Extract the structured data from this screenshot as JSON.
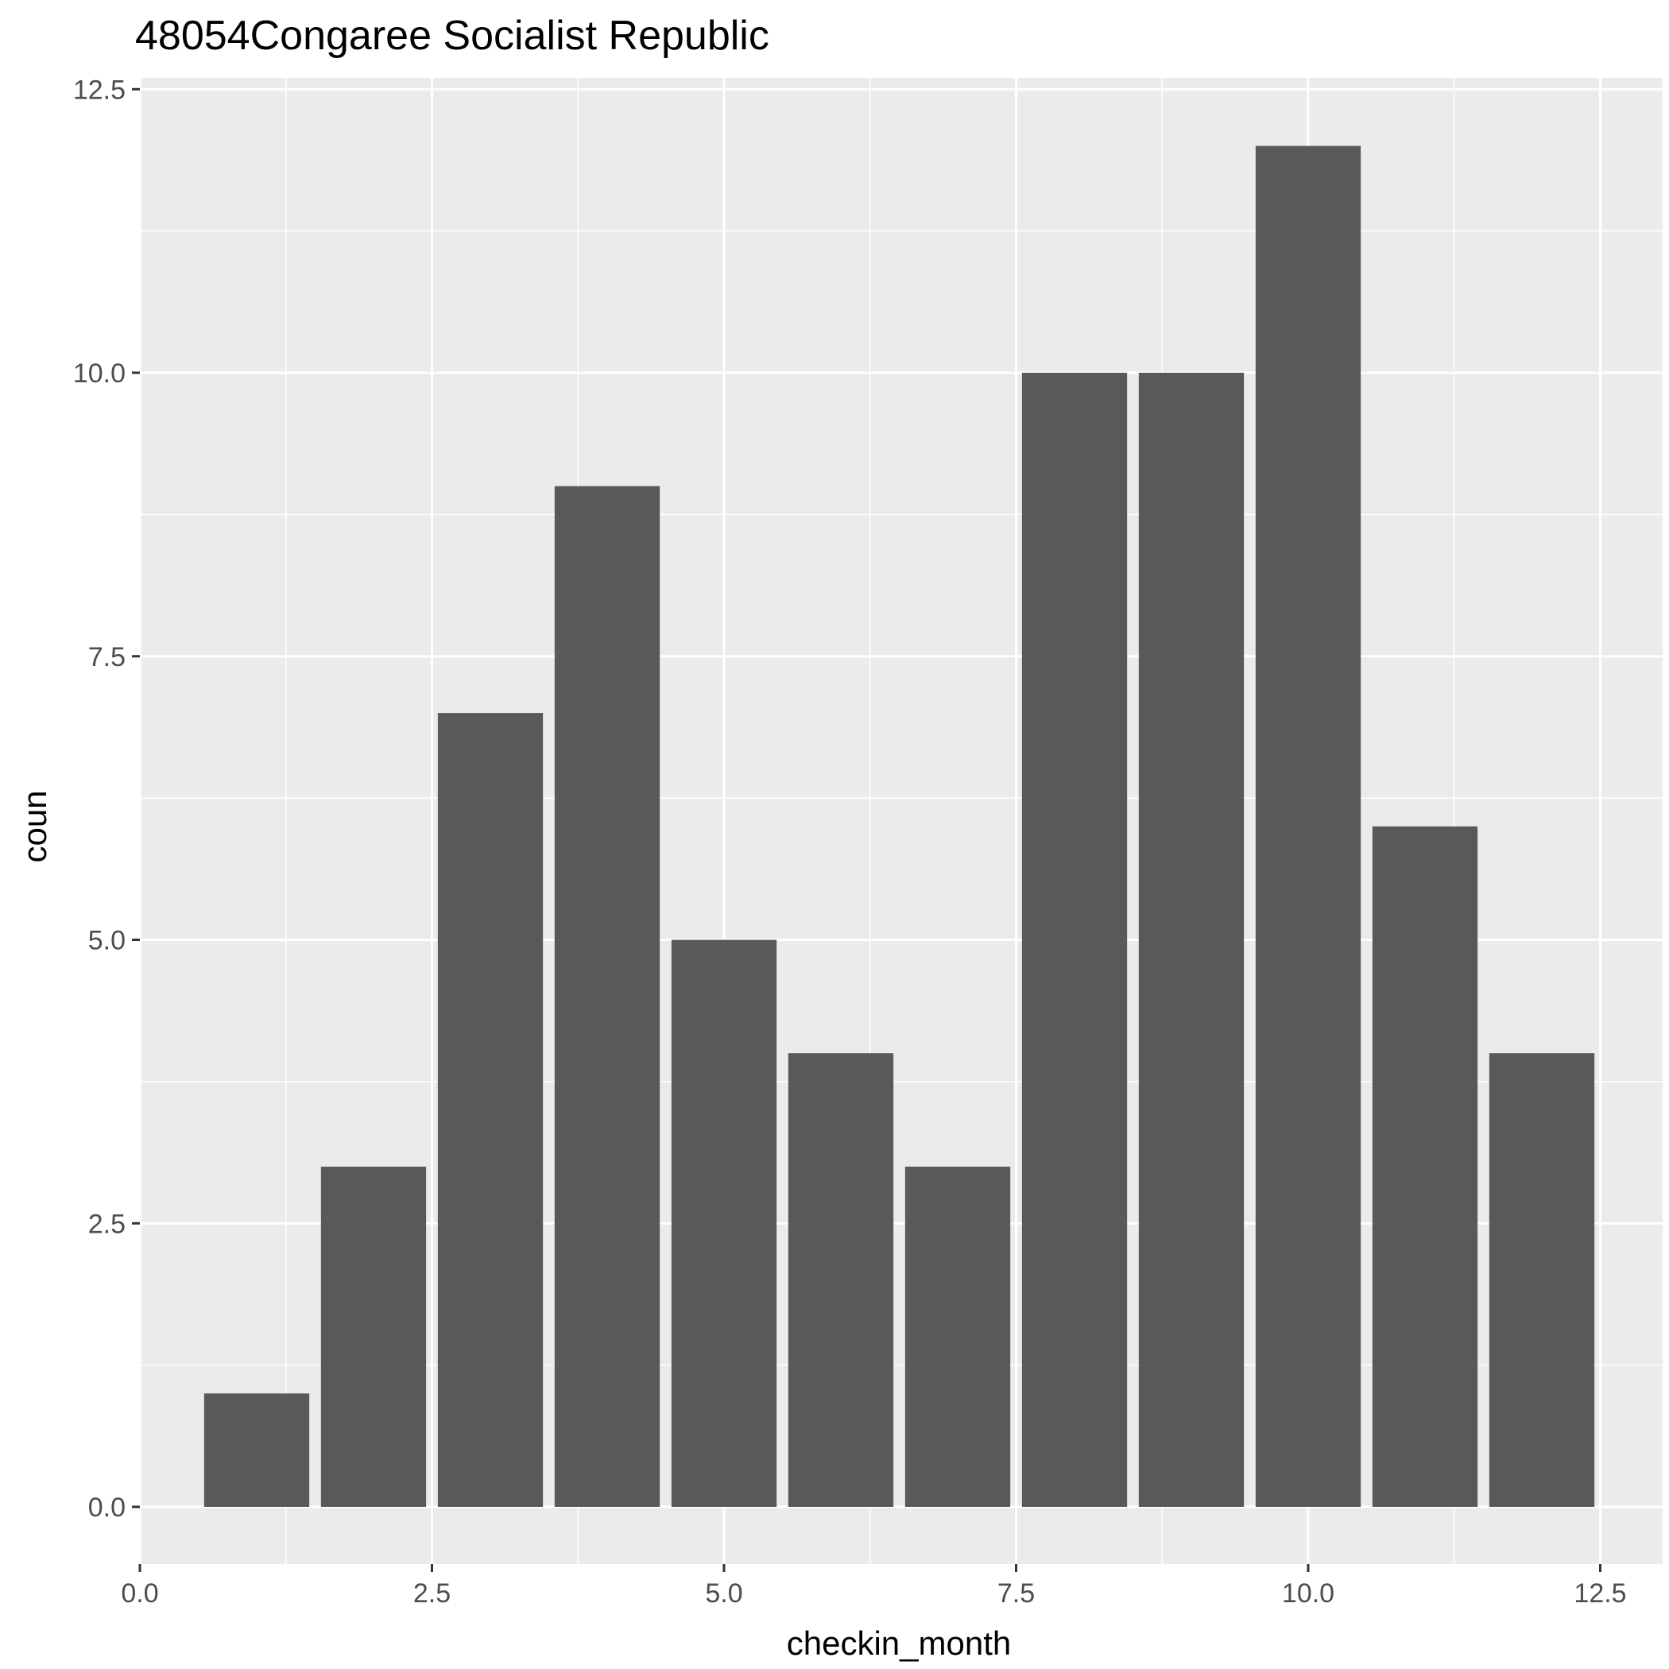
{
  "chart_data": {
    "type": "bar",
    "title": "48054Congaree Socialist Republic",
    "xlabel": "checkin_month",
    "ylabel": "coun",
    "x": [
      1,
      2,
      3,
      4,
      5,
      6,
      7,
      8,
      9,
      10,
      11,
      12
    ],
    "values": [
      1,
      3,
      7,
      9,
      5,
      4,
      3,
      10,
      10,
      12,
      6,
      4
    ],
    "xlim": [
      0,
      13
    ],
    "ylim": [
      -0.6,
      12.6
    ],
    "xticks": [
      "0.0",
      "2.5",
      "5.0",
      "7.5",
      "10.0",
      "12.5"
    ],
    "yticks": [
      "0.0",
      "2.5",
      "5.0",
      "7.5",
      "10.0",
      "12.5"
    ],
    "grid": true,
    "colors": {
      "bar": "#595959",
      "panel": "#ebebeb",
      "grid": "#ffffff"
    }
  }
}
